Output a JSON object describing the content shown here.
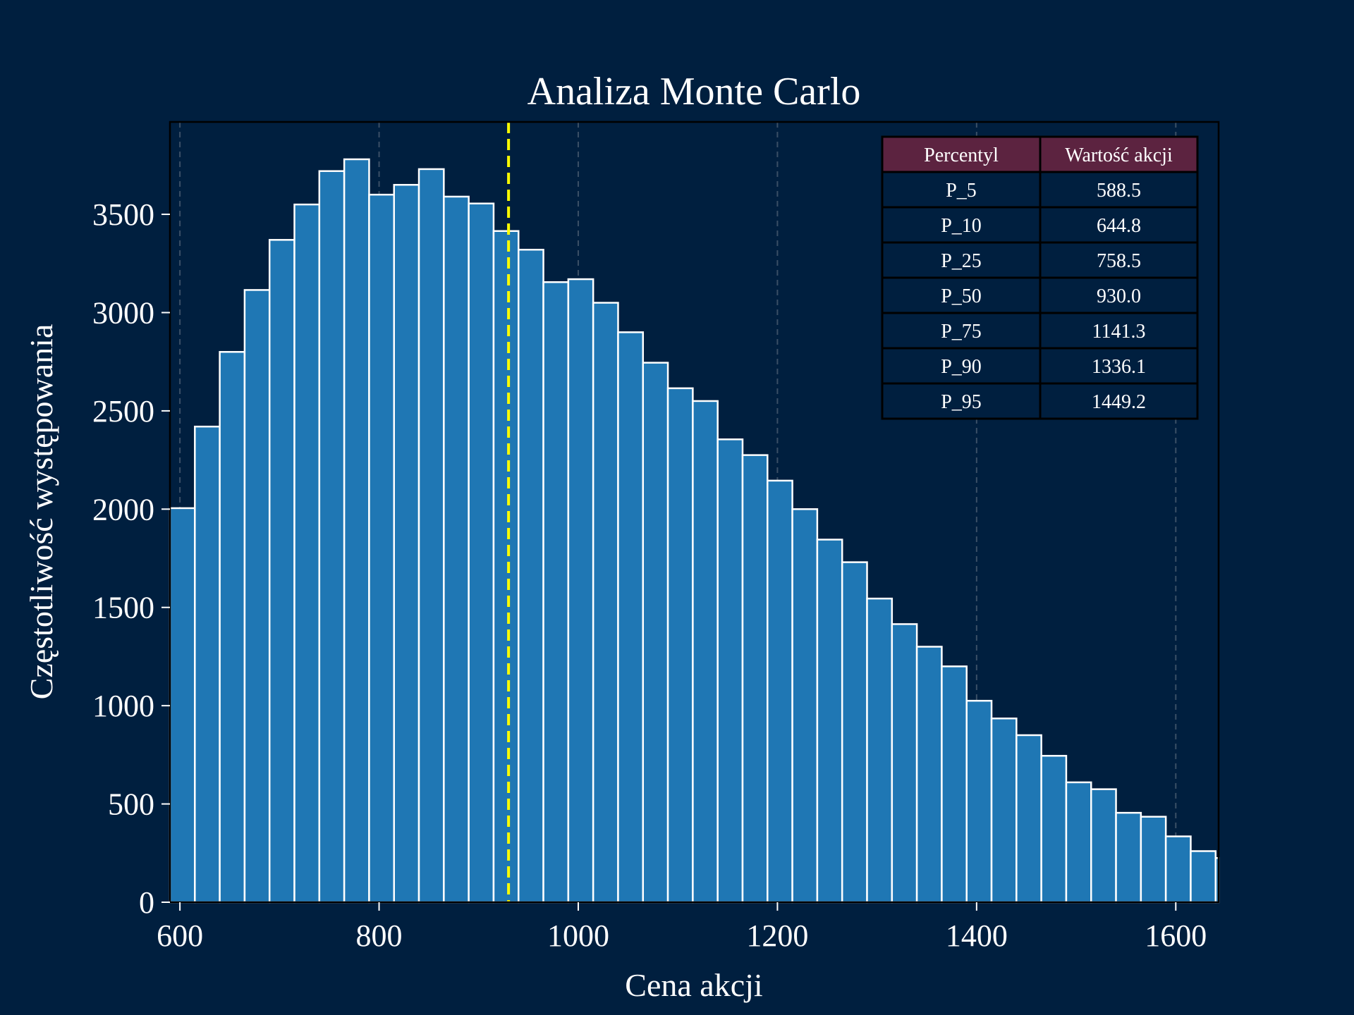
{
  "colors": {
    "background": "#001f3f",
    "bar_fill": "#1f77b4",
    "bar_edge": "#ffffff",
    "median_line": "#ffff00",
    "grid": "#3a4f66",
    "table_header": "#5c2340",
    "table_cell": "#001f3f",
    "table_border": "#000000"
  },
  "chart_data": {
    "type": "bar",
    "subtype": "histogram",
    "title": "Analiza Monte Carlo",
    "xlabel": "Cena akcji",
    "ylabel": "Częstotliwość występowania",
    "xlim": [
      590,
      1643
    ],
    "ylim": [
      0,
      3970
    ],
    "xticks": [
      600,
      800,
      1000,
      1200,
      1400,
      1600
    ],
    "yticks": [
      0,
      500,
      1000,
      1500,
      2000,
      2500,
      3000,
      3500
    ],
    "grid": "vertical dashed",
    "bin_width": 25,
    "bin_start": 590,
    "values": [
      2005,
      2420,
      2800,
      3115,
      3370,
      3550,
      3720,
      3780,
      3600,
      3650,
      3730,
      3590,
      3555,
      3415,
      3320,
      3155,
      3170,
      3050,
      2900,
      2745,
      2615,
      2550,
      2355,
      2275,
      2145,
      2000,
      1845,
      1730,
      1545,
      1415,
      1300,
      1200,
      1025,
      935,
      850,
      745,
      610,
      575,
      455,
      435,
      335,
      260,
      225
    ],
    "median_line": 930.0
  },
  "table": {
    "headers": [
      "Percentyl",
      "Wartość akcji"
    ],
    "rows": [
      [
        "P_5",
        "588.5"
      ],
      [
        "P_10",
        "644.8"
      ],
      [
        "P_25",
        "758.5"
      ],
      [
        "P_50",
        "930.0"
      ],
      [
        "P_75",
        "1141.3"
      ],
      [
        "P_90",
        "1336.1"
      ],
      [
        "P_95",
        "1449.2"
      ]
    ]
  }
}
